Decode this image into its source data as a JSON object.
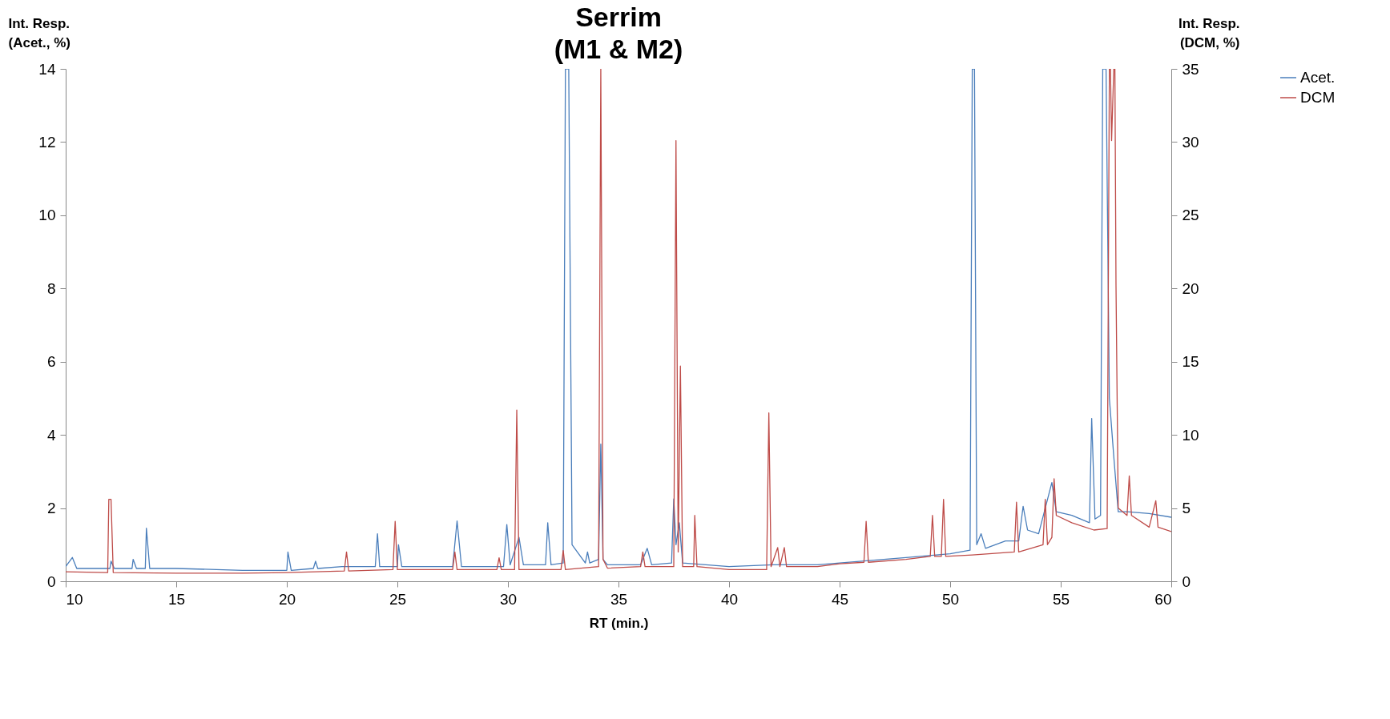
{
  "chart_data": {
    "type": "line",
    "title": "Serrim\n(M1 & M2)",
    "xlabel": "RT (min.)",
    "ylabel": "Int. Resp.\n(Acet., %)",
    "y2label": "Int. Resp.\n(DCM, %)",
    "xlim": [
      10,
      60
    ],
    "xticks": [
      10,
      15,
      20,
      25,
      30,
      35,
      40,
      45,
      50,
      55,
      60
    ],
    "ylim": [
      0,
      14
    ],
    "yticks": [
      0,
      2,
      4,
      6,
      8,
      10,
      12,
      14
    ],
    "y2lim": [
      0,
      35
    ],
    "y2ticks": [
      0,
      5,
      10,
      15,
      20,
      25,
      30,
      35
    ],
    "legend": "right",
    "grid": false,
    "marker": "none",
    "line_style": "solid",
    "series": [
      {
        "name": "Acet.",
        "color": "#4a7ebb",
        "x": [
          10,
          10.3,
          10.5,
          12,
          12.05,
          12.2,
          13,
          13.05,
          13.2,
          13.6,
          13.65,
          13.8,
          15,
          18,
          20,
          20.05,
          20.2,
          21.2,
          21.3,
          21.4,
          22.5,
          24,
          24.1,
          24.2,
          25,
          25.05,
          25.2,
          27.5,
          27.7,
          27.9,
          29.8,
          29.95,
          30.1,
          30.5,
          30.7,
          31.7,
          31.8,
          31.95,
          32.5,
          32.6,
          32.75,
          32.9,
          33.5,
          33.6,
          33.7,
          34.1,
          34.2,
          34.3,
          34.5,
          36,
          36.3,
          36.5,
          37.4,
          37.5,
          37.6,
          37.75,
          37.9,
          40,
          42,
          44,
          46,
          48,
          50,
          50.9,
          51,
          51.1,
          51.2,
          51.4,
          51.6,
          52.5,
          53.1,
          53.3,
          53.5,
          54,
          54.6,
          54.8,
          55.5,
          56.3,
          56.4,
          56.55,
          56.8,
          56.9,
          57.05,
          57.2,
          57.4,
          57.6,
          58,
          59,
          60
        ],
        "values": [
          0.4,
          0.65,
          0.35,
          0.35,
          0.55,
          0.35,
          0.35,
          0.6,
          0.35,
          0.35,
          1.45,
          0.35,
          0.35,
          0.3,
          0.3,
          0.8,
          0.3,
          0.35,
          0.55,
          0.35,
          0.4,
          0.4,
          1.3,
          0.4,
          0.4,
          1.0,
          0.4,
          0.4,
          1.65,
          0.4,
          0.4,
          1.55,
          0.45,
          1.2,
          0.45,
          0.45,
          1.6,
          0.45,
          0.5,
          14,
          14,
          1.0,
          0.5,
          0.8,
          0.5,
          0.6,
          3.75,
          0.6,
          0.45,
          0.45,
          0.9,
          0.45,
          0.5,
          2.25,
          1.0,
          1.6,
          0.5,
          0.4,
          0.45,
          0.45,
          0.55,
          0.65,
          0.75,
          0.85,
          14,
          14,
          1.0,
          1.3,
          0.9,
          1.1,
          1.1,
          2.05,
          1.4,
          1.3,
          2.7,
          1.9,
          1.8,
          1.6,
          4.45,
          1.7,
          1.8,
          14,
          14,
          5,
          3.4,
          1.9,
          1.9,
          1.85,
          1.75
        ]
      },
      {
        "name": "DCM",
        "color": "#be4b48",
        "axis": "y2",
        "x": [
          10,
          11.9,
          11.95,
          12.05,
          12.15,
          15,
          18,
          20,
          22.6,
          22.7,
          22.8,
          24.8,
          24.9,
          25.0,
          27.5,
          27.6,
          27.7,
          29.5,
          29.6,
          29.7,
          30.3,
          30.4,
          30.5,
          32.4,
          32.5,
          32.6,
          34.1,
          34.2,
          34.3,
          34.5,
          36,
          36.1,
          36.2,
          37.5,
          37.6,
          37.7,
          37.8,
          37.9,
          38.4,
          38.45,
          38.55,
          40,
          41.7,
          41.8,
          41.9,
          42.2,
          42.3,
          42.5,
          42.6,
          44,
          45,
          46.1,
          46.2,
          46.3,
          48,
          49.1,
          49.2,
          49.3,
          49.6,
          49.7,
          49.8,
          51,
          52.9,
          53,
          53.1,
          54.2,
          54.3,
          54.4,
          54.6,
          54.7,
          54.8,
          55.5,
          56.5,
          57.1,
          57.2,
          57.25,
          57.3,
          57.4,
          57.45,
          57.5,
          57.6,
          58,
          58.1,
          58.2,
          59,
          59.3,
          59.4,
          60
        ],
        "values": [
          0.65,
          0.6,
          5.6,
          5.6,
          0.6,
          0.55,
          0.55,
          0.6,
          0.7,
          2.0,
          0.7,
          0.8,
          4.1,
          0.8,
          0.8,
          2.0,
          0.8,
          0.8,
          1.6,
          0.8,
          0.8,
          11.7,
          0.8,
          0.8,
          2.1,
          0.8,
          1.0,
          35,
          1.5,
          0.9,
          1.0,
          2.0,
          1.0,
          1.0,
          30.1,
          2,
          14.7,
          1.0,
          1.0,
          4.5,
          1.0,
          0.8,
          0.8,
          11.5,
          1.0,
          2.3,
          1.0,
          2.3,
          1.0,
          1.0,
          1.2,
          1.3,
          4.1,
          1.3,
          1.5,
          1.7,
          4.5,
          1.7,
          1.7,
          5.6,
          1.7,
          1.8,
          2.0,
          5.4,
          2.0,
          2.5,
          5.6,
          2.5,
          3.0,
          7.0,
          4.5,
          4.0,
          3.5,
          3.6,
          35,
          35,
          30.1,
          35,
          35,
          20.2,
          5,
          4.5,
          7.2,
          4.5,
          3.7,
          5.5,
          3.7,
          3.4
        ]
      }
    ]
  }
}
